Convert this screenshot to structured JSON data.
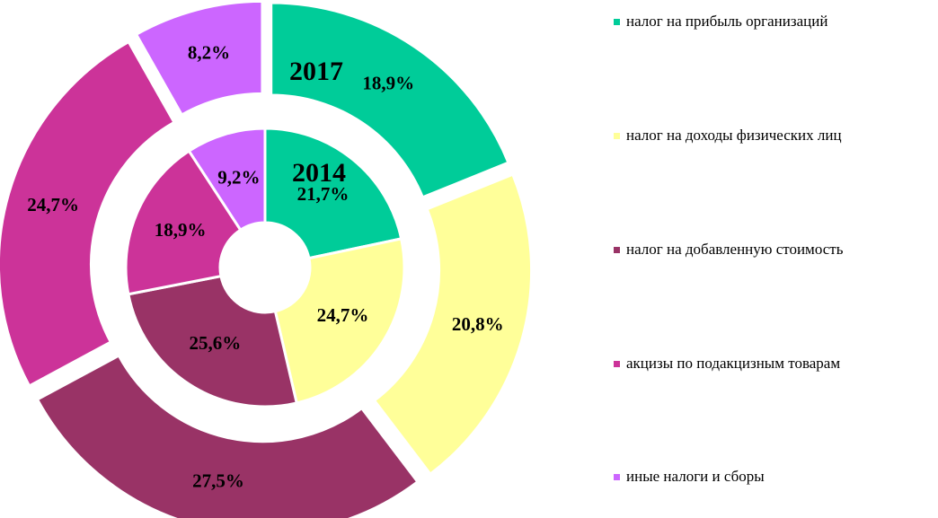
{
  "chart_data": {
    "type": "donut",
    "categories": [
      "налог на прибыль организаций",
      "налог на доходы физических лиц",
      "налог на добавленную стоимость",
      "акцизы по подакцизным товарам",
      "иные налоги и сборы"
    ],
    "colors": [
      "#00cc99",
      "#ffff99",
      "#993366",
      "#cc3399",
      "#cc66ff"
    ],
    "series": [
      {
        "name": "2014",
        "values": [
          21.7,
          24.7,
          25.6,
          18.9,
          9.2
        ],
        "value_labels": [
          "21,7%",
          "24,7%",
          "25,6%",
          "18,9%",
          "9,2%"
        ]
      },
      {
        "name": "2017",
        "values": [
          18.9,
          20.8,
          27.5,
          24.7,
          8.2
        ],
        "value_labels": [
          "18,9%",
          "20,8%",
          "27,5%",
          "24,7%",
          "8,2%"
        ]
      }
    ]
  }
}
